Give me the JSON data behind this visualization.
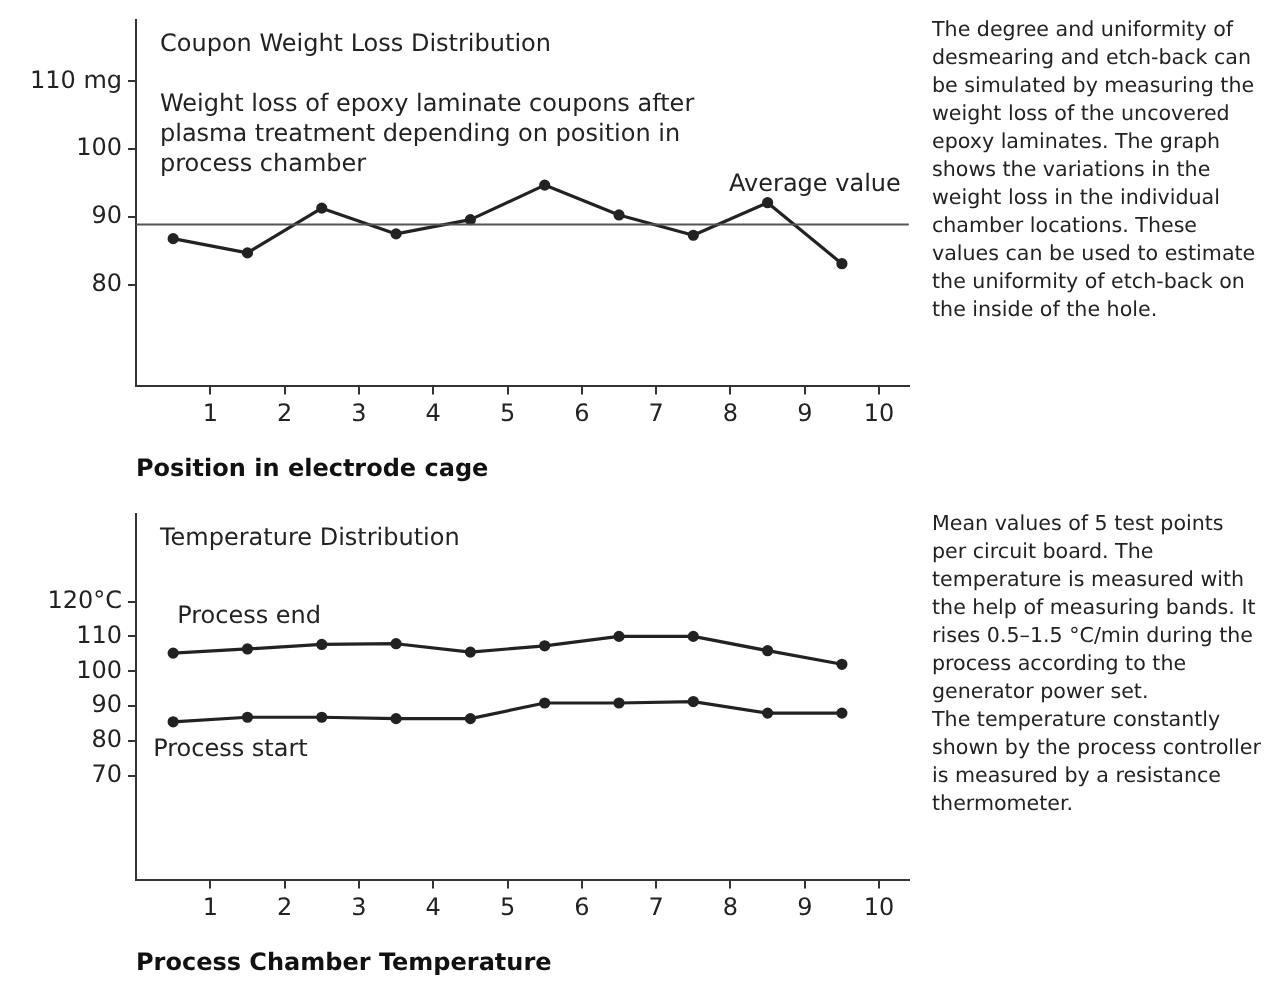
{
  "chart_data": [
    {
      "type": "line",
      "title": "Coupon Weight Loss Distribution",
      "subtitle": "Weight loss of epoxy laminate coupons after plasma treatment depending on position in process chamber",
      "xlabel": "Position in electrode cage",
      "x": [
        0.5,
        1.5,
        2.5,
        3.5,
        4.5,
        5.5,
        6.5,
        7.5,
        8.5,
        9.5
      ],
      "values": [
        86.8,
        84.7,
        91.3,
        87.5,
        89.6,
        94.7,
        90.3,
        87.3,
        92.1,
        83.1
      ],
      "color": "#222222",
      "marker": "circle",
      "grid": false,
      "legend": false,
      "xlim": [
        0,
        10.4
      ],
      "xticks": [
        1,
        2,
        3,
        4,
        5,
        6,
        7,
        8,
        9,
        10
      ],
      "ylim": [
        65,
        119
      ],
      "yticks": [
        {
          "value": 110,
          "label": "110 mg"
        },
        100,
        90,
        80
      ],
      "ref_lines": [
        {
          "axis": "y",
          "value": 88.9,
          "label": "Average value",
          "color": "#555555"
        }
      ],
      "annotations": [
        "The degree and uniformity of desmearing and etch-back can be simulated by measuring the weight loss of the uncovered epoxy laminates. The graph shows the variations in the weight loss in the individual chamber locations. These values can be used to estimate the uniformity of etch-back on the inside of the hole."
      ]
    },
    {
      "type": "line",
      "title": "Temperature Distribution",
      "xlabel": "Process Chamber Temperature",
      "x": [
        0.5,
        1.5,
        2.5,
        3.5,
        4.5,
        5.5,
        6.5,
        7.5,
        8.5,
        9.5
      ],
      "series": [
        {
          "name": "Process end",
          "color": "#222222",
          "values": [
            105.2,
            106.4,
            107.7,
            107.9,
            105.5,
            107.3,
            110,
            110,
            105.9,
            102
          ]
        },
        {
          "name": "Process start",
          "color": "#222222",
          "values": [
            85.5,
            86.8,
            86.8,
            86.4,
            86.4,
            90.9,
            90.9,
            91.3,
            88,
            88
          ]
        }
      ],
      "marker": "circle",
      "grid": false,
      "legend": false,
      "xlim": [
        0,
        10.4
      ],
      "xticks": [
        1,
        2,
        3,
        4,
        5,
        6,
        7,
        8,
        9,
        10
      ],
      "ylim": [
        40,
        145
      ],
      "yticks": [
        {
          "value": 120,
          "label": "120°C"
        },
        110,
        100,
        90,
        80,
        70
      ],
      "annotations": [
        "Mean values of 5 test points per circuit board. The temperature is measured with the help of measuring bands. It rises 0.5–1.5 °C/min during the process according to the generator power set.",
        "The temperature constantly shown by the process controller is measured by a resistance thermometer."
      ]
    }
  ]
}
